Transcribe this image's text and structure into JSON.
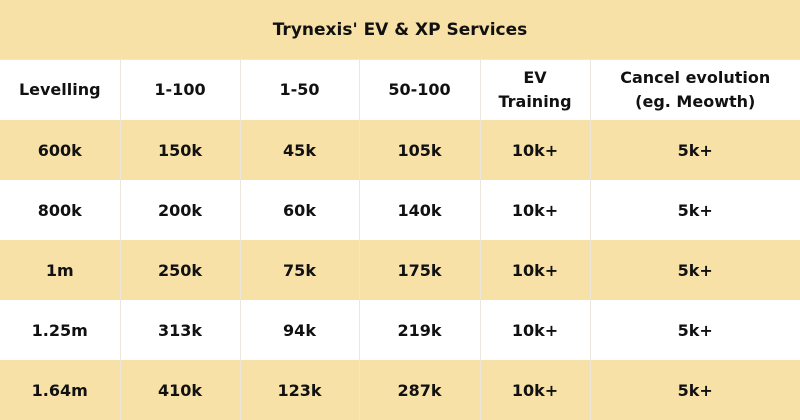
{
  "title": "Trynexis' EV & XP Services",
  "colors": {
    "band": "#f7e1a6",
    "white": "#ffffff"
  },
  "headers": [
    "Levelling",
    "1-100",
    "1-50",
    "50-100",
    "EV\nTraining",
    "Cancel evolution\n(eg. Meowth)"
  ],
  "rows": [
    [
      "600k",
      "150k",
      "45k",
      "105k",
      "10k+",
      "5k+"
    ],
    [
      "800k",
      "200k",
      "60k",
      "140k",
      "10k+",
      "5k+"
    ],
    [
      "1m",
      "250k",
      "75k",
      "175k",
      "10k+",
      "5k+"
    ],
    [
      "1.25m",
      "313k",
      "94k",
      "219k",
      "10k+",
      "5k+"
    ],
    [
      "1.64m",
      "410k",
      "123k",
      "287k",
      "10k+",
      "5k+"
    ]
  ]
}
